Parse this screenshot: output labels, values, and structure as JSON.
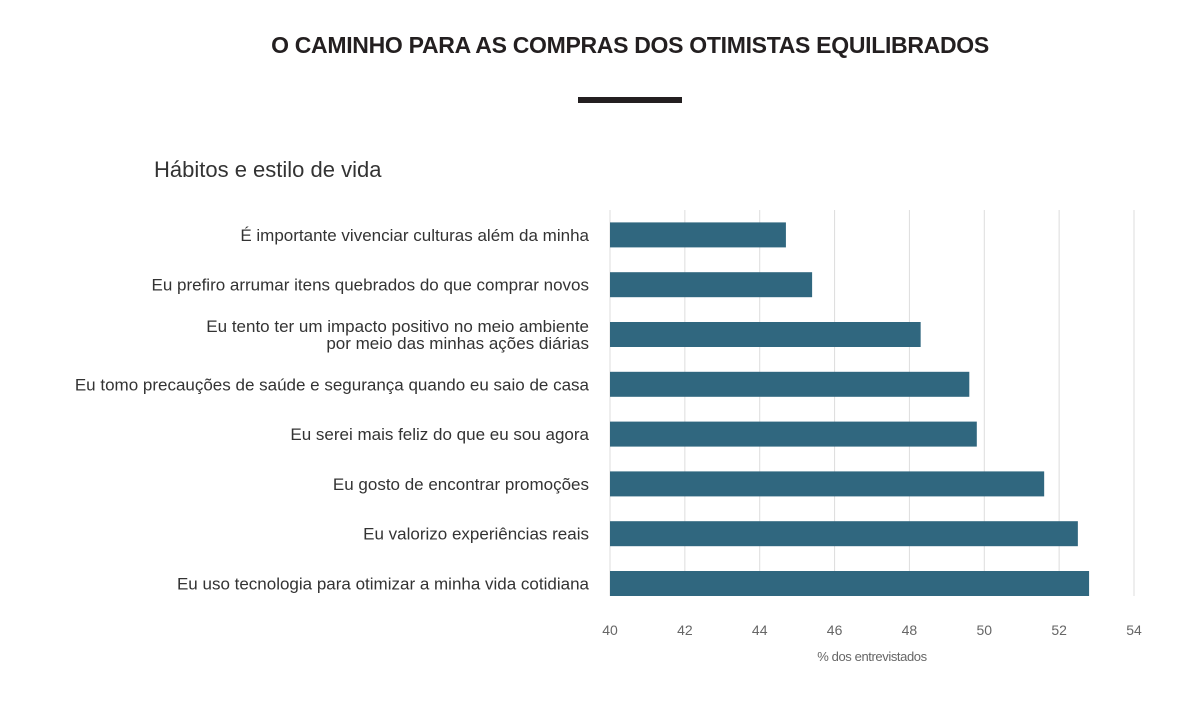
{
  "header": {
    "title": "O CAMINHO PARA AS COMPRAS DOS OTIMISTAS EQUILIBRADOS",
    "subtitle": "Hábitos e estilo de vida"
  },
  "colors": {
    "bar": "#30677f",
    "grid": "#dddddd",
    "label": "#333333",
    "tick": "#666666",
    "title": "#231f20"
  },
  "chart_data": {
    "type": "bar",
    "orientation": "horizontal",
    "title": "",
    "subtitle": "Hábitos e estilo de vida",
    "categories": [
      [
        "É importante vivenciar culturas além da minha"
      ],
      [
        "Eu prefiro arrumar itens quebrados do que comprar novos"
      ],
      [
        "Eu tento ter um impacto positivo no meio ambiente",
        "por meio das minhas ações diárias"
      ],
      [
        "Eu tomo precauções de saúde e segurança quando eu saio de casa"
      ],
      [
        "Eu serei mais feliz do que eu sou agora"
      ],
      [
        "Eu gosto de encontrar promoções"
      ],
      [
        "Eu valorizo experiências reais"
      ],
      [
        "Eu uso tecnologia para otimizar a minha vida cotidiana"
      ]
    ],
    "values": [
      44.7,
      45.4,
      48.3,
      49.6,
      49.8,
      51.6,
      52.5,
      52.8
    ],
    "xlabel": "% dos entrevistados",
    "ylabel": "",
    "xlim": [
      40,
      54
    ],
    "xticks": [
      "40",
      "42",
      "44",
      "46",
      "48",
      "50",
      "52",
      "54"
    ],
    "grid": true,
    "legend": "none"
  }
}
